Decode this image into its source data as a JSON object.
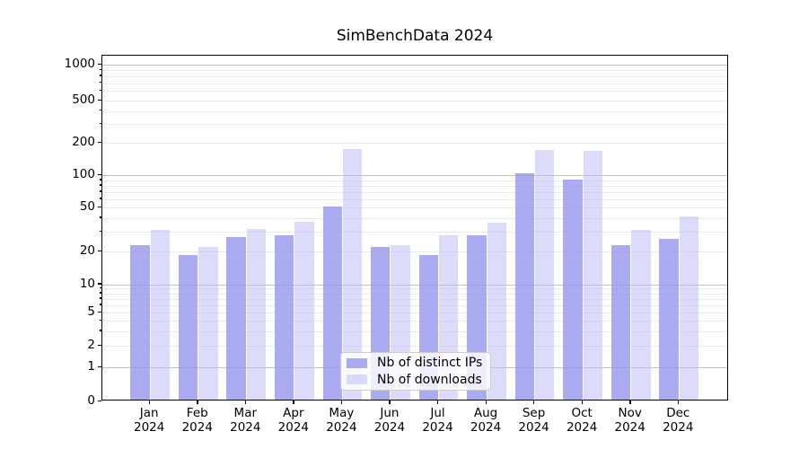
{
  "title": "SimBenchData 2024",
  "chart_data": {
    "type": "bar",
    "categories": [
      "Jan",
      "Feb",
      "Mar",
      "Apr",
      "May",
      "Jun",
      "Jul",
      "Aug",
      "Sep",
      "Oct",
      "Nov",
      "Dec"
    ],
    "category_year": "2024",
    "series": [
      {
        "name": "Nb of distinct IPs",
        "color_hex": "#aaaaef",
        "fill": "rgba(150,150,237,0.8)",
        "values": [
          22,
          18,
          26,
          27,
          49,
          21,
          18,
          27,
          100,
          88,
          22,
          25
        ]
      },
      {
        "name": "Nb of downloads",
        "color_hex": "#dcdcfa",
        "fill": "rgba(185,185,246,0.5)",
        "values": [
          30,
          21,
          31,
          36,
          170,
          22,
          27,
          35,
          165,
          162,
          30,
          40
        ]
      }
    ],
    "yscale": "symlog",
    "ylim": [
      0,
      1200
    ],
    "y_ticks_labeled": [
      0,
      1,
      2,
      5,
      10,
      20,
      50,
      100,
      200,
      500,
      1000
    ],
    "y_minor_gridlines": [
      2,
      3,
      4,
      5,
      6,
      7,
      8,
      9,
      20,
      30,
      40,
      50,
      60,
      70,
      80,
      90,
      200,
      300,
      400,
      500,
      600,
      700,
      800,
      900
    ],
    "y_major_gridlines": [
      1,
      10,
      100,
      1000
    ],
    "grid": "horizontal major+minor",
    "legend_position": "lower center",
    "grid_major_color": "#c2c2c2",
    "grid_minor_color": "#ebebeb"
  }
}
